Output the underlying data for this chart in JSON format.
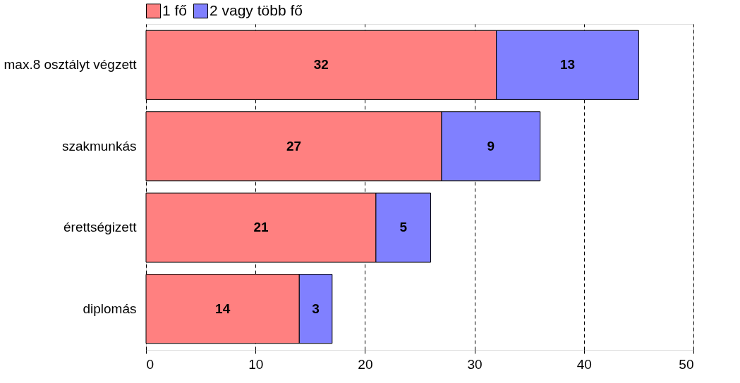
{
  "chart_data": {
    "type": "bar",
    "orientation": "horizontal",
    "stacked": true,
    "categories": [
      "max.8 osztályt végzett",
      "szakmunkás",
      "érettségizett",
      "diplomás"
    ],
    "series": [
      {
        "name": "1 fő",
        "color": "#ff8080",
        "values": [
          32,
          27,
          21,
          14
        ]
      },
      {
        "name": "2 vagy több fő",
        "color": "#8080ff",
        "values": [
          13,
          9,
          5,
          3
        ]
      }
    ],
    "xlim": [
      0,
      50
    ],
    "xticks": [
      0,
      10,
      20,
      30,
      40,
      50
    ],
    "grid": "x",
    "legend": "top",
    "data_labels": true
  }
}
